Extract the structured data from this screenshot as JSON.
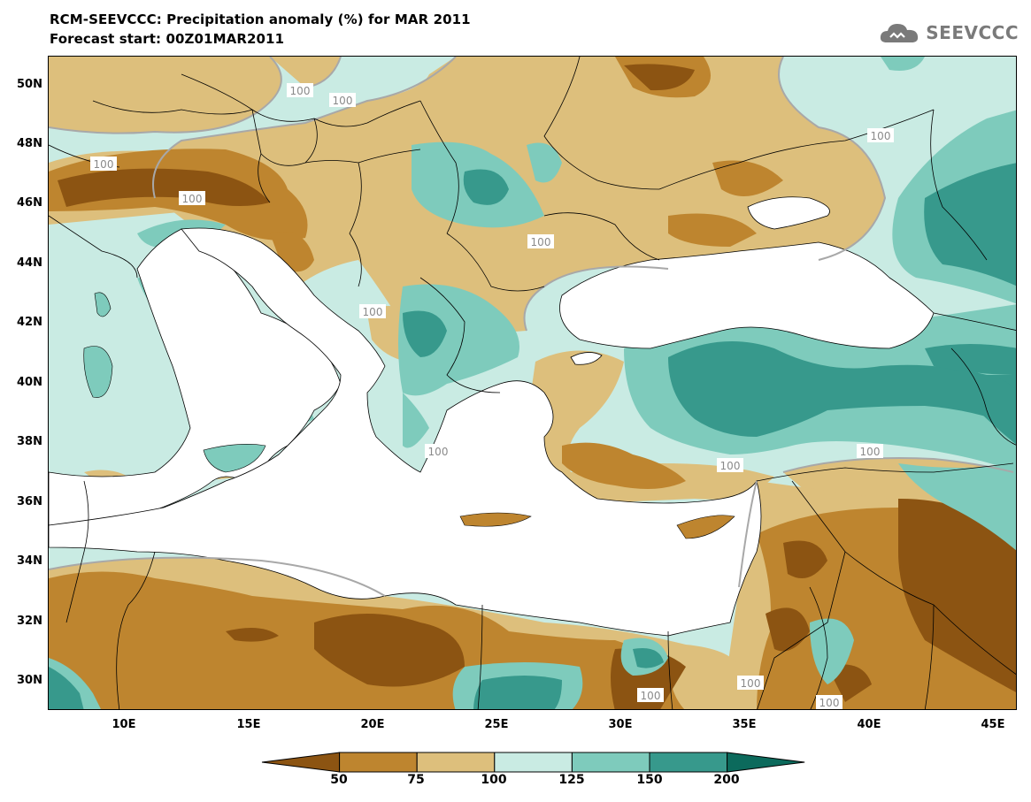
{
  "title": {
    "line1": "RCM-SEEVCCC: Precipitation anomaly (%) for MAR 2011",
    "line2": "Forecast start: 00Z01MAR2011"
  },
  "logo": {
    "text": "SEEVCCC",
    "icon": "cloud-icon"
  },
  "map": {
    "lon_range": [
      7,
      46
    ],
    "lat_range": [
      29,
      51
    ],
    "lat_ticks": [
      "50N",
      "48N",
      "46N",
      "44N",
      "42N",
      "40N",
      "38N",
      "36N",
      "34N",
      "32N",
      "30N"
    ],
    "lon_ticks": [
      "10E",
      "15E",
      "20E",
      "25E",
      "30E",
      "35E",
      "40E",
      "45E"
    ],
    "contour_labels": [
      "100",
      "100",
      "100",
      "100",
      "100",
      "100",
      "100",
      "100",
      "100",
      "100",
      "100",
      "100",
      "100"
    ]
  },
  "legend": {
    "thresholds": [
      "50",
      "75",
      "100",
      "125",
      "150",
      "200"
    ],
    "colors": [
      "#8c5412",
      "#be852f",
      "#ddbf7c",
      "#c9ebe3",
      "#7ecbbc",
      "#37998c",
      "#0c6a5c"
    ]
  },
  "colors": {
    "land_default": "#c9ebe3",
    "sea": "#ffffff",
    "contour": "#a8a8a8"
  }
}
